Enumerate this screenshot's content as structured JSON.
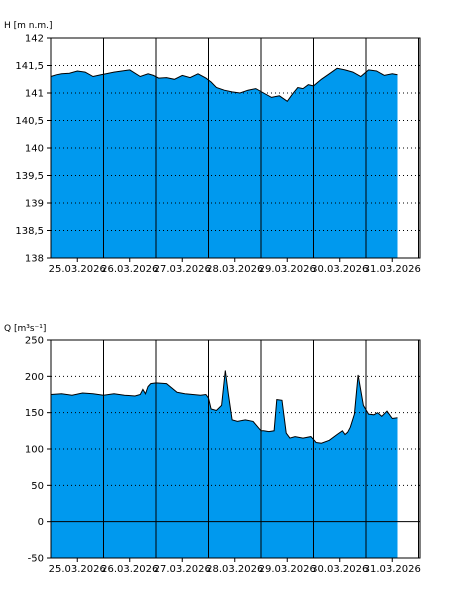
{
  "chart_data": [
    {
      "type": "area",
      "ylabel": "H [m n.m.]",
      "ylim": [
        138,
        142
      ],
      "yticks": [
        138,
        138.5,
        139,
        139.5,
        140,
        140.5,
        141,
        141.5,
        142
      ],
      "ytick_labels": [
        "138",
        "138,5",
        "139",
        "139,5",
        "140",
        "140,5",
        "141",
        "141,5",
        "142"
      ],
      "xlim": [
        0,
        7.4
      ],
      "xticks": [
        "25.03.2026",
        "26.03.2026",
        "27.03.2026",
        "28.03.2026",
        "29.03.2026",
        "30.03.2026",
        "31.03.2026"
      ],
      "grid": true,
      "fill_color": "#0099ee",
      "series": [
        {
          "x": [
            0.0,
            0.1,
            0.2,
            0.35,
            0.5,
            0.65,
            0.8,
            0.95,
            1.05,
            1.2,
            1.35,
            1.5,
            1.7,
            1.85,
            1.95,
            2.05,
            2.2,
            2.35,
            2.5,
            2.65,
            2.8,
            2.95,
            3.05,
            3.15,
            3.3,
            3.45,
            3.6,
            3.75,
            3.9,
            4.05,
            4.2,
            4.35,
            4.5,
            4.6,
            4.7,
            4.8,
            4.9,
            5.0,
            5.15,
            5.3,
            5.45,
            5.6,
            5.75,
            5.9,
            6.05,
            6.2,
            6.35,
            6.5,
            6.6
          ],
          "values": [
            141.3,
            141.33,
            141.35,
            141.36,
            141.4,
            141.38,
            141.3,
            141.33,
            141.35,
            141.38,
            141.4,
            141.42,
            141.3,
            141.35,
            141.32,
            141.27,
            141.28,
            141.25,
            141.32,
            141.28,
            141.35,
            141.27,
            141.2,
            141.1,
            141.05,
            141.02,
            141.0,
            141.05,
            141.08,
            141.0,
            140.92,
            140.95,
            140.85,
            140.98,
            141.1,
            141.08,
            141.15,
            141.13,
            141.25,
            141.35,
            141.45,
            141.42,
            141.38,
            141.3,
            141.42,
            141.4,
            141.32,
            141.35,
            141.33
          ]
        }
      ]
    },
    {
      "type": "area",
      "ylabel": "Q [m³s⁻¹]",
      "ylim": [
        -50,
        250
      ],
      "yticks": [
        -50,
        0,
        50,
        100,
        150,
        200,
        250
      ],
      "ytick_labels": [
        "-50",
        "0",
        "50",
        "100",
        "150",
        "200",
        "250"
      ],
      "xlim": [
        0,
        7.4
      ],
      "xticks": [
        "25.03.2026",
        "26.03.2026",
        "27.03.2026",
        "28.03.2026",
        "29.03.2026",
        "30.03.2026",
        "31.03.2026"
      ],
      "grid": true,
      "fill_color": "#0099ee",
      "series": [
        {
          "x": [
            0.0,
            0.2,
            0.4,
            0.6,
            0.8,
            1.0,
            1.2,
            1.4,
            1.6,
            1.7,
            1.75,
            1.8,
            1.85,
            1.9,
            2.0,
            2.2,
            2.4,
            2.55,
            2.7,
            2.85,
            2.95,
            3.0,
            3.05,
            3.15,
            3.25,
            3.32,
            3.38,
            3.45,
            3.55,
            3.7,
            3.85,
            4.0,
            4.05,
            4.15,
            4.25,
            4.3,
            4.4,
            4.48,
            4.55,
            4.65,
            4.8,
            4.95,
            5.05,
            5.15,
            5.3,
            5.45,
            5.55,
            5.6,
            5.65,
            5.7,
            5.78,
            5.85,
            5.95,
            6.05,
            6.15,
            6.22,
            6.3,
            6.4,
            6.5,
            6.6
          ],
          "values": [
            175,
            176,
            174,
            177,
            176,
            174,
            176,
            174,
            173,
            175,
            182,
            176,
            186,
            190,
            191,
            190,
            178,
            176,
            175,
            174,
            175,
            170,
            155,
            153,
            160,
            208,
            175,
            140,
            138,
            140,
            138,
            125,
            125,
            124,
            125,
            168,
            167,
            122,
            115,
            117,
            115,
            117,
            109,
            108,
            112,
            120,
            125,
            120,
            123,
            130,
            148,
            202,
            160,
            148,
            147,
            150,
            145,
            152,
            142,
            143
          ]
        }
      ]
    }
  ]
}
